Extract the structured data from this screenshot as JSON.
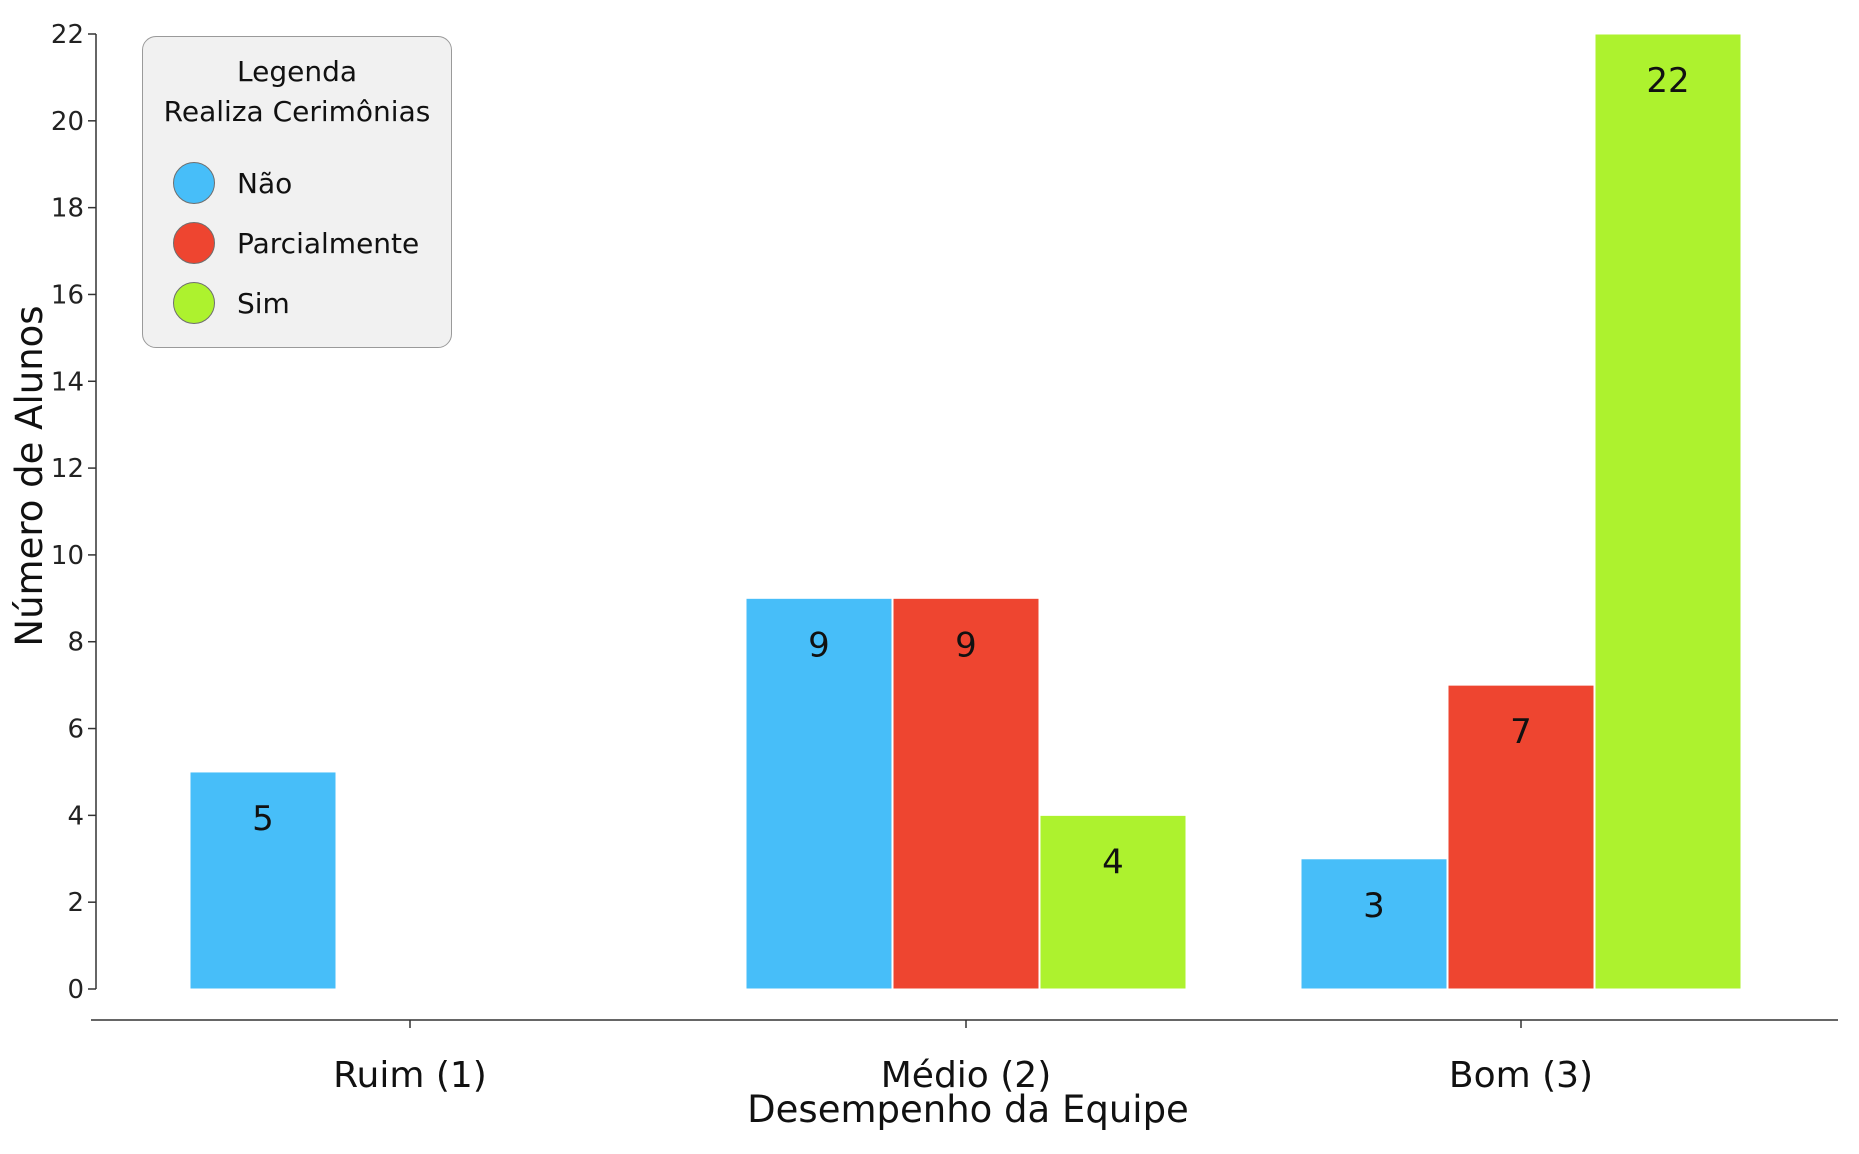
{
  "chart_data": {
    "type": "bar",
    "categories": [
      "Ruim (1)",
      "Médio (2)",
      "Bom (3)"
    ],
    "series": [
      {
        "name": "Não",
        "color": "#47bef9",
        "values": [
          5,
          9,
          3
        ]
      },
      {
        "name": "Parcialmente",
        "color": "#ee4530",
        "values": [
          0,
          9,
          7
        ]
      },
      {
        "name": "Sim",
        "color": "#adf22e",
        "values": [
          0,
          4,
          22
        ]
      }
    ],
    "xlabel": "Desempenho da Equipe",
    "ylabel": "Número de Alunos",
    "ylim": [
      0,
      22
    ],
    "yticks": [
      0,
      2,
      4,
      6,
      8,
      10,
      12,
      14,
      16,
      18,
      20,
      22
    ],
    "grid": false,
    "legend": {
      "title_line1": "Legenda",
      "title_line2": "Realiza Cerimônias",
      "placement": "top-left"
    }
  }
}
